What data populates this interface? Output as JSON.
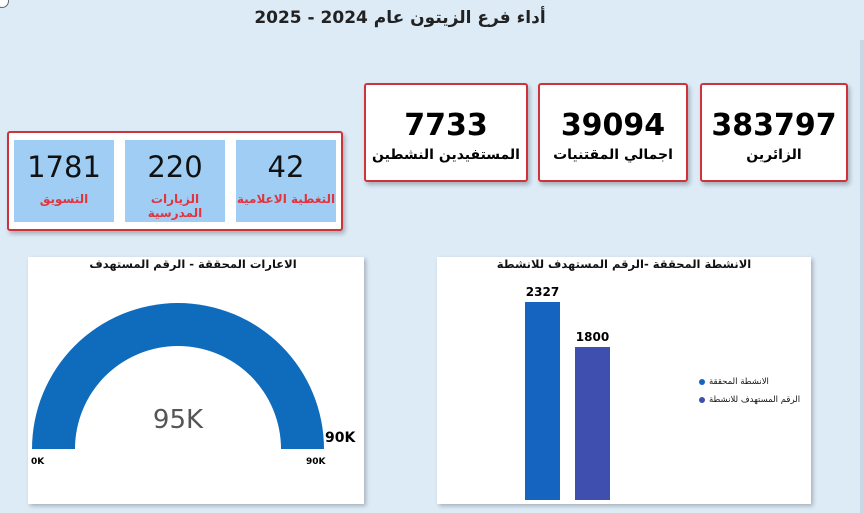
{
  "header": {
    "title": "أداء فرع الزيتون عام 2024 - 2025"
  },
  "kpis": [
    {
      "value": "383797",
      "label": "الزائرين"
    },
    {
      "value": "39094",
      "label": "اجمالي المقتنيات"
    },
    {
      "value": "7733",
      "label": "المستفيدين النشطين"
    }
  ],
  "sub_kpis": [
    {
      "value": "42",
      "label": "التغطية الاعلامية"
    },
    {
      "value": "220",
      "label": "الزيارات المدرسية"
    },
    {
      "value": "1781",
      "label": "التسويق"
    }
  ],
  "gauge": {
    "title": "الاعارات المحققة - الرقم المستهدف",
    "center_label": "95K",
    "target_label": "90K",
    "min_label": "0K",
    "max_label": "90K",
    "value": 95000,
    "min": 0,
    "max": 90000,
    "color": "#0f6cbd"
  },
  "chart_data": {
    "type": "bar",
    "title": "الانشطة المحققة -الرقم المستهدف للانشطة",
    "categories": [
      "الانشطة المحققة",
      "الرقم المستهدف للانشطة"
    ],
    "values": [
      2327,
      1800
    ],
    "colors": [
      "#1565c0",
      "#3e4fb0"
    ],
    "legend": [
      "الانشطة المحققة",
      "الرقم المستهدف للانشطة"
    ],
    "legend_position": "right",
    "ylim": [
      0,
      2700
    ]
  }
}
